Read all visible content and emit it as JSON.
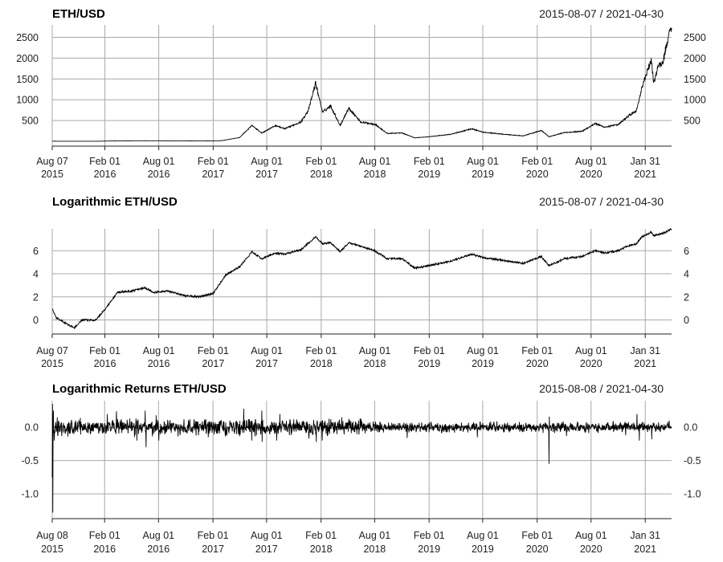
{
  "chart_data": [
    {
      "type": "line",
      "title": "ETH/USD",
      "date_range": "2015-08-07 / 2021-04-30",
      "xlabel": "",
      "ylabel": "",
      "ylim": [
        0,
        2800
      ],
      "y_ticks": [
        500,
        1000,
        1500,
        2000,
        2500
      ],
      "y_tick_labels": [
        "500",
        "1000",
        "1500",
        "2000",
        "2500"
      ],
      "x_range": [
        "2015-08-07",
        "2021-04-30"
      ],
      "x_ticks": [
        "2015-08-07",
        "2016-02-01",
        "2016-08-01",
        "2017-02-01",
        "2017-08-01",
        "2018-02-01",
        "2018-08-01",
        "2019-02-01",
        "2019-08-01",
        "2020-02-01",
        "2020-08-01",
        "2021-01-31"
      ],
      "x_tick_labels": [
        [
          "Aug 07",
          "2015"
        ],
        [
          "Feb 01",
          "2016"
        ],
        [
          "Aug 01",
          "2016"
        ],
        [
          "Feb 01",
          "2017"
        ],
        [
          "Aug 01",
          "2017"
        ],
        [
          "Feb 01",
          "2018"
        ],
        [
          "Aug 01",
          "2018"
        ],
        [
          "Feb 01",
          "2019"
        ],
        [
          "Aug 01",
          "2019"
        ],
        [
          "Feb 01",
          "2020"
        ],
        [
          "Aug 01",
          "2020"
        ],
        [
          "Jan 31",
          "2021"
        ]
      ],
      "grid": true,
      "series": [
        {
          "x": [
            "2015-08-07",
            "2015-10-01",
            "2016-01-01",
            "2016-03-15",
            "2016-06-15",
            "2016-09-01",
            "2017-01-01",
            "2017-03-01",
            "2017-05-01",
            "2017-06-12",
            "2017-07-15",
            "2017-08-31",
            "2017-10-01",
            "2017-11-25",
            "2017-12-20",
            "2018-01-13",
            "2018-02-06",
            "2018-03-05",
            "2018-04-06",
            "2018-05-05",
            "2018-06-15",
            "2018-08-01",
            "2018-09-12",
            "2018-11-01",
            "2018-12-14",
            "2019-02-01",
            "2019-04-15",
            "2019-06-25",
            "2019-08-01",
            "2019-10-01",
            "2019-12-16",
            "2020-02-15",
            "2020-03-12",
            "2020-05-01",
            "2020-07-01",
            "2020-08-15",
            "2020-09-15",
            "2020-11-01",
            "2020-12-01",
            "2021-01-01",
            "2021-01-20",
            "2021-02-20",
            "2021-03-01",
            "2021-03-15",
            "2021-04-01",
            "2021-04-15",
            "2021-04-30"
          ],
          "values": [
            2.8,
            0.6,
            1.0,
            11,
            14,
            12,
            8,
            15,
            90,
            380,
            200,
            380,
            300,
            470,
            750,
            1400,
            700,
            850,
            380,
            800,
            460,
            410,
            190,
            200,
            84,
            110,
            170,
            300,
            220,
            175,
            130,
            260,
            110,
            210,
            240,
            430,
            340,
            400,
            590,
            730,
            1300,
            1950,
            1400,
            1800,
            1900,
            2400,
            2760
          ]
        }
      ]
    },
    {
      "type": "line",
      "title": "Logarithmic ETH/USD",
      "date_range": "2015-08-07 / 2021-04-30",
      "xlabel": "",
      "ylabel": "",
      "ylim": [
        -0.8,
        7.9
      ],
      "y_ticks": [
        0,
        2,
        4,
        6
      ],
      "y_tick_labels": [
        "0",
        "2",
        "4",
        "6"
      ],
      "x_range": [
        "2015-08-07",
        "2021-04-30"
      ],
      "x_ticks": [
        "2015-08-07",
        "2016-02-01",
        "2016-08-01",
        "2017-02-01",
        "2017-08-01",
        "2018-02-01",
        "2018-08-01",
        "2019-02-01",
        "2019-08-01",
        "2020-02-01",
        "2020-08-01",
        "2021-01-31"
      ],
      "x_tick_labels": [
        [
          "Aug 07",
          "2015"
        ],
        [
          "Feb 01",
          "2016"
        ],
        [
          "Aug 01",
          "2016"
        ],
        [
          "Feb 01",
          "2017"
        ],
        [
          "Aug 01",
          "2017"
        ],
        [
          "Feb 01",
          "2018"
        ],
        [
          "Aug 01",
          "2018"
        ],
        [
          "Feb 01",
          "2019"
        ],
        [
          "Aug 01",
          "2019"
        ],
        [
          "Feb 01",
          "2020"
        ],
        [
          "Aug 01",
          "2020"
        ],
        [
          "Jan 31",
          "2021"
        ]
      ],
      "grid": true,
      "series": [
        {
          "x": [
            "2015-08-07",
            "2015-08-20",
            "2015-09-15",
            "2015-10-21",
            "2015-11-15",
            "2016-01-01",
            "2016-02-01",
            "2016-03-15",
            "2016-05-01",
            "2016-06-15",
            "2016-07-15",
            "2016-09-01",
            "2016-11-01",
            "2016-12-15",
            "2017-02-01",
            "2017-03-15",
            "2017-05-01",
            "2017-06-12",
            "2017-07-15",
            "2017-08-31",
            "2017-10-01",
            "2017-11-25",
            "2018-01-13",
            "2018-02-06",
            "2018-03-05",
            "2018-04-06",
            "2018-05-05",
            "2018-08-01",
            "2018-09-12",
            "2018-11-01",
            "2018-12-14",
            "2019-02-01",
            "2019-04-15",
            "2019-06-25",
            "2019-08-01",
            "2019-10-01",
            "2019-12-16",
            "2020-02-15",
            "2020-03-12",
            "2020-05-01",
            "2020-07-01",
            "2020-08-15",
            "2020-09-15",
            "2020-11-01",
            "2020-12-01",
            "2021-01-01",
            "2021-01-20",
            "2021-02-20",
            "2021-03-01",
            "2021-04-01",
            "2021-04-30"
          ],
          "values": [
            1.0,
            0.2,
            -0.2,
            -0.7,
            0.0,
            0.0,
            0.9,
            2.4,
            2.5,
            2.8,
            2.4,
            2.5,
            2.1,
            2.0,
            2.3,
            3.9,
            4.6,
            5.9,
            5.3,
            5.8,
            5.7,
            6.1,
            7.2,
            6.6,
            6.7,
            5.9,
            6.7,
            6.0,
            5.3,
            5.3,
            4.5,
            4.7,
            5.1,
            5.7,
            5.4,
            5.2,
            4.9,
            5.5,
            4.7,
            5.3,
            5.5,
            6.0,
            5.8,
            6.0,
            6.4,
            6.6,
            7.2,
            7.6,
            7.3,
            7.5,
            7.9
          ]
        }
      ]
    },
    {
      "type": "line",
      "title": "Logarithmic Returns ETH/USD",
      "date_range": "2015-08-08 / 2021-04-30",
      "xlabel": "",
      "ylabel": "",
      "ylim": [
        -1.3,
        0.4
      ],
      "y_ticks": [
        -1.0,
        -0.5,
        0.0
      ],
      "y_tick_labels": [
        "-1.0",
        "-0.5",
        "0.0"
      ],
      "x_range": [
        "2015-08-08",
        "2021-04-30"
      ],
      "x_ticks": [
        "2015-08-08",
        "2016-02-01",
        "2016-08-01",
        "2017-02-01",
        "2017-08-01",
        "2018-02-01",
        "2018-08-01",
        "2019-02-01",
        "2019-08-01",
        "2020-02-01",
        "2020-08-01",
        "2021-01-31"
      ],
      "x_tick_labels": [
        [
          "Aug 08",
          "2015"
        ],
        [
          "Feb 01",
          "2016"
        ],
        [
          "Aug 01",
          "2016"
        ],
        [
          "Feb 01",
          "2017"
        ],
        [
          "Aug 01",
          "2017"
        ],
        [
          "Feb 01",
          "2018"
        ],
        [
          "Aug 01",
          "2018"
        ],
        [
          "Feb 01",
          "2019"
        ],
        [
          "Aug 01",
          "2019"
        ],
        [
          "Feb 01",
          "2020"
        ],
        [
          "Aug 01",
          "2020"
        ],
        [
          "Jan 31",
          "2021"
        ]
      ],
      "grid": true,
      "series": [
        {
          "x": [
            "2015-08-08",
            "2015-08-09",
            "2015-08-10",
            "2015-08-12",
            "2015-08-15",
            "2015-08-25",
            "2015-10-20",
            "2016-02-10",
            "2016-03-12",
            "2016-05-20",
            "2016-06-17",
            "2016-06-20",
            "2016-07-24",
            "2016-08-02",
            "2017-03-01",
            "2017-05-16",
            "2017-06-12",
            "2017-07-16",
            "2017-07-17",
            "2017-09-04",
            "2017-09-15",
            "2017-12-22",
            "2018-01-16",
            "2018-02-05",
            "2018-04-12",
            "2018-11-19",
            "2019-07-14",
            "2020-03-11",
            "2020-03-12",
            "2020-03-13",
            "2020-05-10",
            "2020-11-26",
            "2021-01-03",
            "2021-01-11",
            "2021-02-22",
            "2021-04-22",
            "2021-04-30"
          ],
          "values": [
            -0.75,
            0.35,
            -1.28,
            0.25,
            -0.2,
            0.15,
            -0.1,
            0.2,
            0.24,
            -0.2,
            0.25,
            -0.3,
            0.18,
            -0.2,
            0.1,
            0.28,
            -0.2,
            0.25,
            -0.22,
            -0.2,
            0.2,
            -0.17,
            -0.22,
            -0.2,
            0.15,
            -0.16,
            -0.15,
            -0.05,
            -0.55,
            0.16,
            -0.13,
            -0.12,
            0.2,
            -0.2,
            -0.18,
            0.1,
            0.0
          ]
        }
      ]
    }
  ]
}
